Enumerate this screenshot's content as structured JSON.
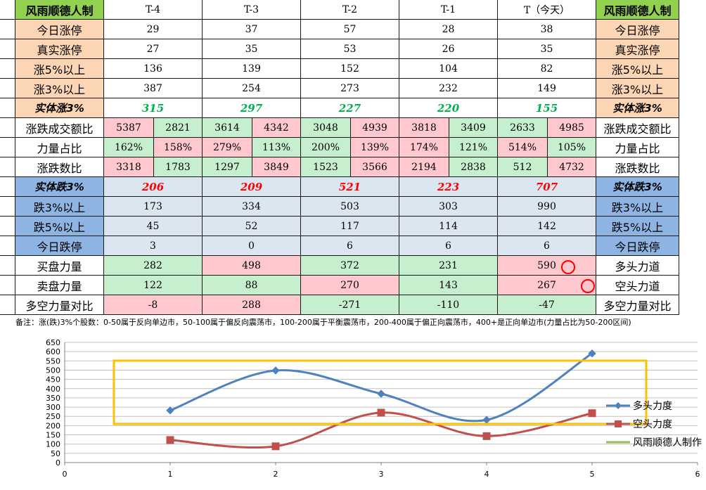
{
  "table": {
    "brand_left": "风雨顺德人制",
    "brand_right": "风雨顺德人制",
    "periods": [
      "T-4",
      "T-3",
      "T-2",
      "T-1",
      "T（今天）"
    ],
    "rows": [
      {
        "label": "今日涨停",
        "values": [
          "29",
          "37",
          "57",
          "28",
          "38"
        ]
      },
      {
        "label": "真实涨停",
        "values": [
          "27",
          "35",
          "53",
          "26",
          "35"
        ]
      },
      {
        "label": "涨5%以上",
        "values": [
          "136",
          "139",
          "152",
          "104",
          "82"
        ]
      },
      {
        "label": "涨3%以上",
        "values": [
          "387",
          "254",
          "273",
          "232",
          "149"
        ]
      },
      {
        "label": "实体涨3%",
        "values": [
          "315",
          "297",
          "227",
          "220",
          "155"
        ]
      },
      {
        "label": "涨跌成交额比",
        "pairs": [
          [
            "5387",
            "2821"
          ],
          [
            "3614",
            "4342"
          ],
          [
            "3048",
            "4939"
          ],
          [
            "3818",
            "3409"
          ],
          [
            "2633",
            "4985"
          ]
        ]
      },
      {
        "label": "力量占比",
        "pairs": [
          [
            "162%",
            "158%"
          ],
          [
            "279%",
            "113%"
          ],
          [
            "200%",
            "139%"
          ],
          [
            "174%",
            "121%"
          ],
          [
            "514%",
            "105%"
          ]
        ]
      },
      {
        "label": "涨跌数比",
        "pairs": [
          [
            "3318",
            "1783"
          ],
          [
            "1297",
            "3849"
          ],
          [
            "1523",
            "3566"
          ],
          [
            "2194",
            "2838"
          ],
          [
            "512",
            "4732"
          ]
        ]
      },
      {
        "label": "实体跌3%",
        "values": [
          "206",
          "209",
          "521",
          "223",
          "707"
        ]
      },
      {
        "label": "跌3%以上",
        "values": [
          "173",
          "334",
          "503",
          "303",
          "990"
        ]
      },
      {
        "label": "跌5%以上",
        "values": [
          "45",
          "52",
          "117",
          "114",
          "142"
        ]
      },
      {
        "label": "今日跌停",
        "values": [
          "3",
          "0",
          "6",
          "6",
          "6"
        ]
      },
      {
        "label": "买盘力量",
        "right_label": "多头力道",
        "values": [
          "282",
          "498",
          "372",
          "231",
          "590"
        ]
      },
      {
        "label": "卖盘力量",
        "right_label": "空头力道",
        "values": [
          "122",
          "88",
          "270",
          "143",
          "267"
        ]
      },
      {
        "label": "多空力量对比",
        "right_label": "多空力量对比",
        "values": [
          "-8",
          "288",
          "-271",
          "-110",
          "-47"
        ]
      }
    ]
  },
  "note": "备注：涨(跌)3%个股数：0-50属于反向单边市，50-100属于偏反向震荡市，100-200属于平衡震荡市，200-400属于偏正向震荡市，400+是正向单边市(力量占比为50-200区间)",
  "colors": {
    "header_green": "#92d050",
    "peach": "#fcd5b4",
    "blue": "#8db4e2",
    "light_blue": "#dce6f1",
    "light_green": "#c6efce",
    "pink": "#ffc7ce",
    "series_blue": "#4f81bd",
    "series_red": "#c0504d",
    "series_green": "#9bbb59",
    "highlight_box": "#ffc000"
  },
  "chart_data": {
    "type": "line",
    "xlim": [
      0,
      6
    ],
    "ylim": [
      0,
      650
    ],
    "xticks": [
      "0",
      "1",
      "2",
      "3",
      "4",
      "5",
      "6"
    ],
    "yticks": [
      "0",
      "50",
      "100",
      "150",
      "200",
      "250",
      "300",
      "350",
      "400",
      "450",
      "500",
      "550",
      "600",
      "650"
    ],
    "grid": "horizontal",
    "legend_position": "right",
    "series": [
      {
        "name": "多头力度",
        "x": [
          1,
          2,
          3,
          4,
          5
        ],
        "values": [
          282,
          498,
          372,
          231,
          590
        ],
        "color": "#4f81bd",
        "marker": "diamond"
      },
      {
        "name": "空头力度",
        "x": [
          1,
          2,
          3,
          4,
          5
        ],
        "values": [
          122,
          88,
          270,
          143,
          267
        ],
        "color": "#c0504d",
        "marker": "square"
      },
      {
        "name": "风雨顺德人制作",
        "x": [],
        "values": [],
        "color": "#9bbb59",
        "marker": "none"
      }
    ]
  }
}
